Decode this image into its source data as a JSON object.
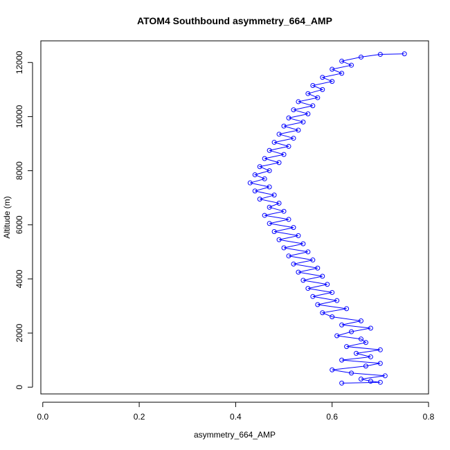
{
  "chart_data": {
    "type": "scatter",
    "title": "ATOM4 Southbound asymmetry_664_AMP",
    "xlabel": "asymmetry_664_AMP",
    "ylabel": "Altitude (m)",
    "xlim": [
      -0.004,
      0.8
    ],
    "ylim": [
      -250,
      12800
    ],
    "x_ticks": [
      0.0,
      0.2,
      0.4,
      0.6,
      0.8
    ],
    "y_ticks": [
      0,
      2000,
      4000,
      6000,
      8000,
      10000,
      12000
    ],
    "x_tick_labels": [
      "0.0",
      "0.2",
      "0.4",
      "0.6",
      "0.8"
    ],
    "y_tick_labels": [
      "0",
      "2000",
      "4000",
      "6000",
      "8000",
      "10000",
      "12000"
    ],
    "grid": false,
    "legend": "none",
    "marker": "open-circle",
    "connect_points": true,
    "series": [
      {
        "color": "#0000ff",
        "points": [
          [
            0.62,
            150
          ],
          [
            0.7,
            180
          ],
          [
            0.68,
            220
          ],
          [
            0.66,
            300
          ],
          [
            0.71,
            420
          ],
          [
            0.64,
            520
          ],
          [
            0.6,
            640
          ],
          [
            0.67,
            780
          ],
          [
            0.7,
            880
          ],
          [
            0.62,
            1000
          ],
          [
            0.68,
            1120
          ],
          [
            0.65,
            1250
          ],
          [
            0.7,
            1380
          ],
          [
            0.63,
            1500
          ],
          [
            0.67,
            1650
          ],
          [
            0.66,
            1780
          ],
          [
            0.61,
            1900
          ],
          [
            0.64,
            2050
          ],
          [
            0.68,
            2180
          ],
          [
            0.62,
            2300
          ],
          [
            0.66,
            2450
          ],
          [
            0.6,
            2600
          ],
          [
            0.58,
            2750
          ],
          [
            0.63,
            2900
          ],
          [
            0.57,
            3050
          ],
          [
            0.61,
            3200
          ],
          [
            0.56,
            3350
          ],
          [
            0.6,
            3500
          ],
          [
            0.55,
            3650
          ],
          [
            0.59,
            3800
          ],
          [
            0.54,
            3950
          ],
          [
            0.58,
            4100
          ],
          [
            0.53,
            4250
          ],
          [
            0.57,
            4400
          ],
          [
            0.52,
            4550
          ],
          [
            0.56,
            4700
          ],
          [
            0.51,
            4850
          ],
          [
            0.55,
            5000
          ],
          [
            0.5,
            5150
          ],
          [
            0.54,
            5300
          ],
          [
            0.49,
            5450
          ],
          [
            0.53,
            5600
          ],
          [
            0.48,
            5750
          ],
          [
            0.52,
            5900
          ],
          [
            0.47,
            6050
          ],
          [
            0.51,
            6200
          ],
          [
            0.46,
            6350
          ],
          [
            0.5,
            6500
          ],
          [
            0.47,
            6650
          ],
          [
            0.49,
            6800
          ],
          [
            0.45,
            6950
          ],
          [
            0.48,
            7100
          ],
          [
            0.44,
            7250
          ],
          [
            0.47,
            7400
          ],
          [
            0.43,
            7550
          ],
          [
            0.46,
            7700
          ],
          [
            0.44,
            7850
          ],
          [
            0.47,
            8000
          ],
          [
            0.45,
            8150
          ],
          [
            0.49,
            8300
          ],
          [
            0.46,
            8450
          ],
          [
            0.5,
            8600
          ],
          [
            0.47,
            8750
          ],
          [
            0.51,
            8900
          ],
          [
            0.48,
            9050
          ],
          [
            0.52,
            9200
          ],
          [
            0.49,
            9350
          ],
          [
            0.53,
            9500
          ],
          [
            0.5,
            9650
          ],
          [
            0.54,
            9800
          ],
          [
            0.51,
            9950
          ],
          [
            0.55,
            10100
          ],
          [
            0.52,
            10250
          ],
          [
            0.56,
            10400
          ],
          [
            0.53,
            10550
          ],
          [
            0.57,
            10700
          ],
          [
            0.55,
            10850
          ],
          [
            0.58,
            11000
          ],
          [
            0.56,
            11150
          ],
          [
            0.6,
            11300
          ],
          [
            0.58,
            11450
          ],
          [
            0.62,
            11600
          ],
          [
            0.6,
            11750
          ],
          [
            0.64,
            11900
          ],
          [
            0.62,
            12050
          ],
          [
            0.66,
            12200
          ],
          [
            0.7,
            12300
          ],
          [
            0.75,
            12320
          ]
        ]
      }
    ]
  }
}
